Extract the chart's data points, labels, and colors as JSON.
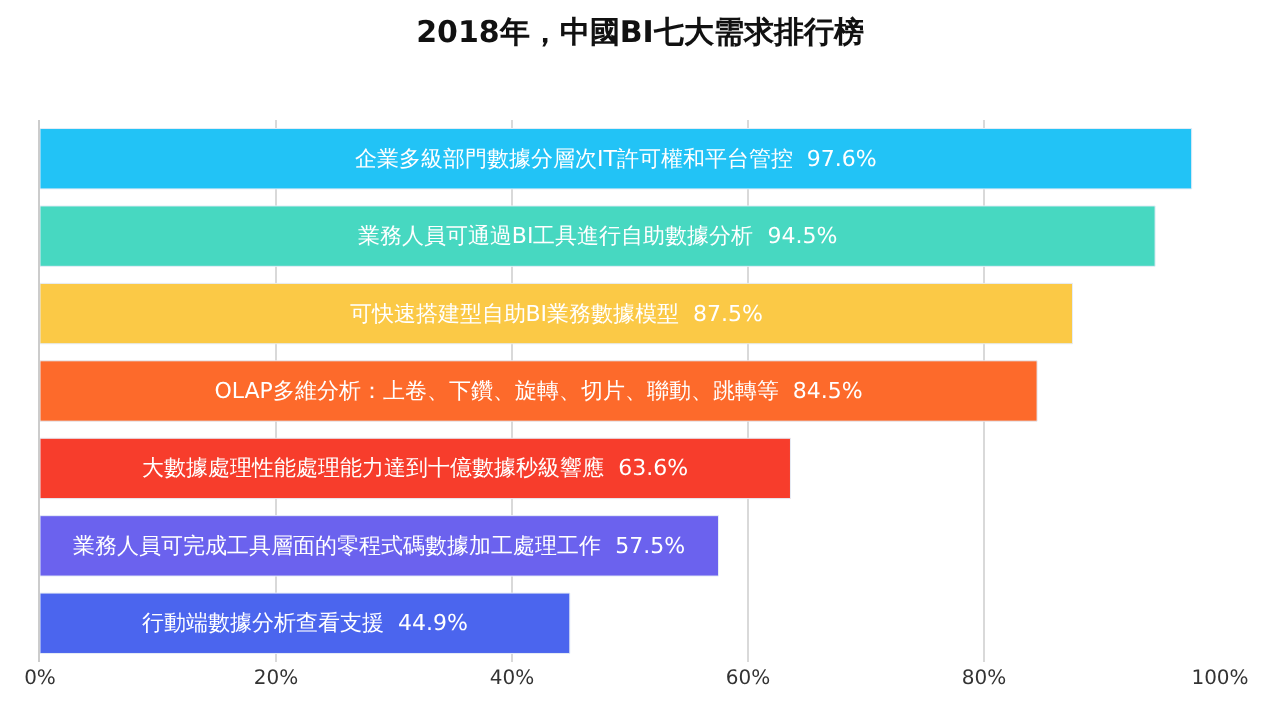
{
  "chart_data": {
    "type": "bar",
    "orientation": "horizontal",
    "title": "2018年，中國BI七大需求排行榜",
    "categories": [
      "企業多級部門數據分層次IT許可權和平台管控",
      "業務人員可通過BI工具進行自助數據分析",
      "可快速搭建型自助BI業務數據模型",
      "OLAP多維分析：上卷、下鑽、旋轉、切片、聯動、跳轉等",
      "大數據處理性能處理能力達到十億數據秒級響應",
      "業務人員可完成工具層面的零程式碼數據加工處理工作",
      "行動端數據分析查看支援"
    ],
    "values": [
      97.6,
      94.5,
      87.5,
      84.5,
      63.6,
      57.5,
      44.9
    ],
    "value_labels": [
      "97.6%",
      "94.5%",
      "87.5%",
      "84.5%",
      "63.6%",
      "57.5%",
      "44.9%"
    ],
    "colors": [
      "#22c3f6",
      "#47d8c1",
      "#fbc946",
      "#fd6a2b",
      "#f73d2c",
      "#6b62ee",
      "#4b65ee"
    ],
    "xlim": [
      0,
      100
    ],
    "xticks": [
      {
        "value": 0,
        "label": "0%"
      },
      {
        "value": 20,
        "label": "20%"
      },
      {
        "value": 40,
        "label": "40%"
      },
      {
        "value": 60,
        "label": "60%"
      },
      {
        "value": 80,
        "label": "80%"
      },
      {
        "value": 100,
        "label": "100%"
      }
    ],
    "grid": "x",
    "tick_labels": "x"
  }
}
